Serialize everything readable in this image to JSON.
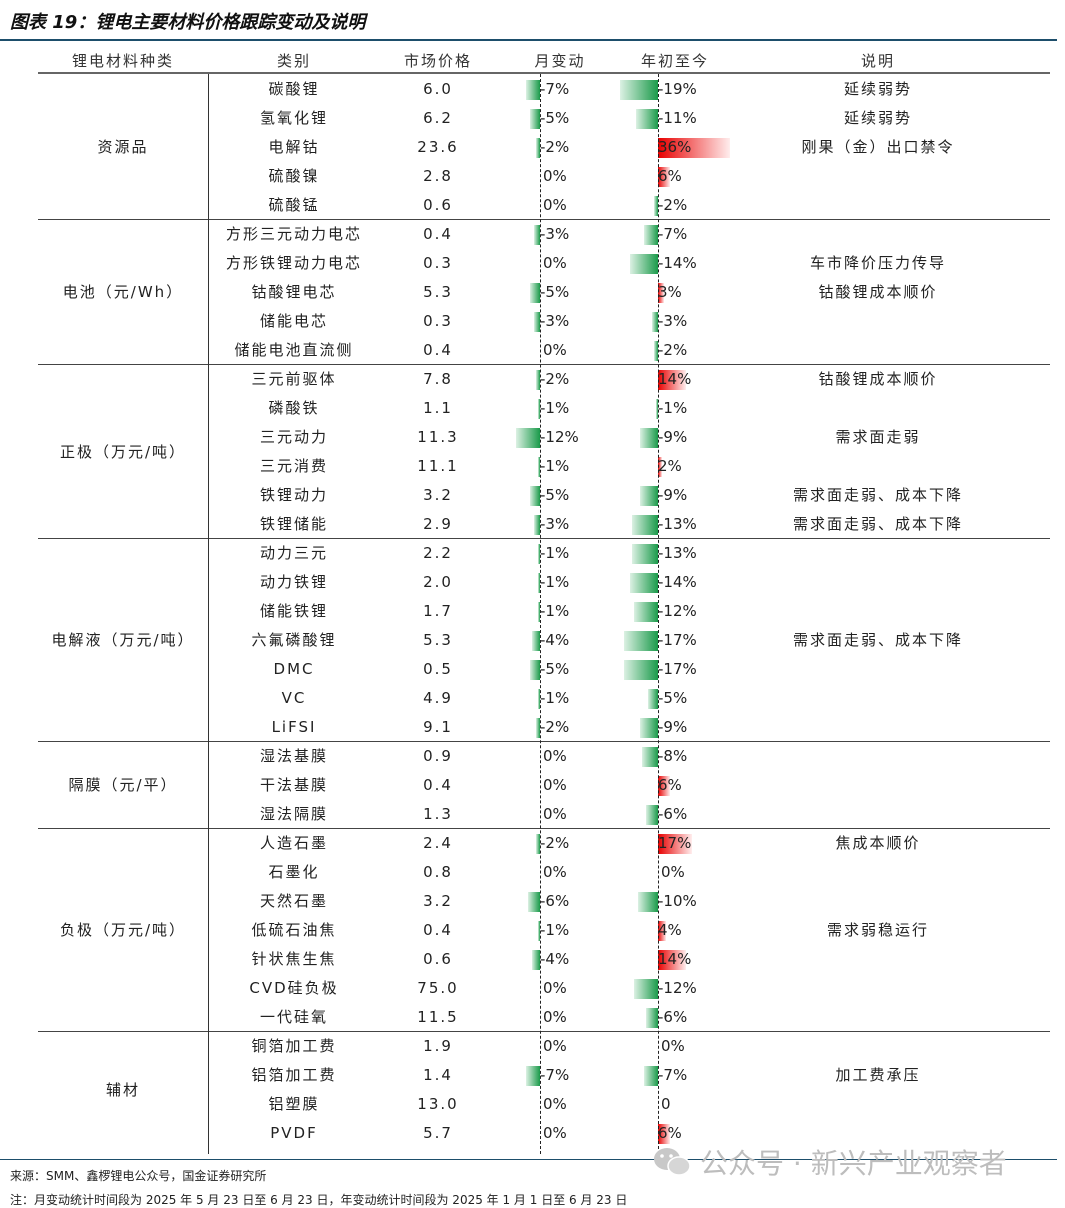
{
  "title": "图表 19：锂电主要材料价格跟踪变动及说明",
  "headers": [
    "锂电材料种类",
    "类别",
    "市场价格",
    "月变动",
    "年初至今",
    "说明"
  ],
  "colors": {
    "negative": "#1a9a4a",
    "positive": "#e80000",
    "rule": "#1d4e6b"
  },
  "groups": [
    {
      "name": "资源品",
      "rows": [
        {
          "name": "碳酸锂",
          "price": "6.0",
          "month": "-7%",
          "year": "-19%",
          "note": "延续弱势"
        },
        {
          "name": "氢氧化锂",
          "price": "6.2",
          "month": "-5%",
          "year": "-11%",
          "note": "延续弱势"
        },
        {
          "name": "电解钴",
          "price": "23.6",
          "month": "-2%",
          "year": "36%",
          "note": "刚果（金）出口禁令"
        },
        {
          "name": "硫酸镍",
          "price": "2.8",
          "month": "0%",
          "year": "6%",
          "note": ""
        },
        {
          "name": "硫酸锰",
          "price": "0.6",
          "month": "0%",
          "year": "-2%",
          "note": ""
        }
      ]
    },
    {
      "name": "电池（元/Wh）",
      "rows": [
        {
          "name": "方形三元动力电芯",
          "price": "0.4",
          "month": "-3%",
          "year": "-7%",
          "note": ""
        },
        {
          "name": "方形铁锂动力电芯",
          "price": "0.3",
          "month": "0%",
          "year": "-14%",
          "note": "车市降价压力传导"
        },
        {
          "name": "钴酸锂电芯",
          "price": "5.3",
          "month": "-5%",
          "year": "3%",
          "note": "钴酸锂成本顺价"
        },
        {
          "name": "储能电芯",
          "price": "0.3",
          "month": "-3%",
          "year": "-3%",
          "note": ""
        },
        {
          "name": "储能电池直流侧",
          "price": "0.4",
          "month": "0%",
          "year": "-2%",
          "note": ""
        }
      ]
    },
    {
      "name": "正极（万元/吨）",
      "rows": [
        {
          "name": "三元前驱体",
          "price": "7.8",
          "month": "-2%",
          "year": "14%",
          "note": "钴酸锂成本顺价"
        },
        {
          "name": "磷酸铁",
          "price": "1.1",
          "month": "-1%",
          "year": "-1%",
          "note": ""
        },
        {
          "name": "三元动力",
          "price": "11.3",
          "month": "-12%",
          "year": "-9%",
          "note": "需求面走弱"
        },
        {
          "name": "三元消费",
          "price": "11.1",
          "month": "-1%",
          "year": "2%",
          "note": ""
        },
        {
          "name": "铁锂动力",
          "price": "3.2",
          "month": "-5%",
          "year": "-9%",
          "note": "需求面走弱、成本下降"
        },
        {
          "name": "铁锂储能",
          "price": "2.9",
          "month": "-3%",
          "year": "-13%",
          "note": "需求面走弱、成本下降"
        }
      ]
    },
    {
      "name": "电解液（万元/吨）",
      "rows": [
        {
          "name": "动力三元",
          "price": "2.2",
          "month": "-1%",
          "year": "-13%",
          "note": ""
        },
        {
          "name": "动力铁锂",
          "price": "2.0",
          "month": "-1%",
          "year": "-14%",
          "note": ""
        },
        {
          "name": "储能铁锂",
          "price": "1.7",
          "month": "-1%",
          "year": "-12%",
          "note": ""
        },
        {
          "name": "六氟磷酸锂",
          "price": "5.3",
          "month": "-4%",
          "year": "-17%",
          "note": "需求面走弱、成本下降"
        },
        {
          "name": "DMC",
          "price": "0.5",
          "month": "-5%",
          "year": "-17%",
          "note": ""
        },
        {
          "name": "VC",
          "price": "4.9",
          "month": "-1%",
          "year": "-5%",
          "note": ""
        },
        {
          "name": "LiFSI",
          "price": "9.1",
          "month": "-2%",
          "year": "-9%",
          "note": ""
        }
      ]
    },
    {
      "name": "隔膜（元/平）",
      "rows": [
        {
          "name": "湿法基膜",
          "price": "0.9",
          "month": "0%",
          "year": "-8%",
          "note": ""
        },
        {
          "name": "干法基膜",
          "price": "0.4",
          "month": "0%",
          "year": "6%",
          "note": ""
        },
        {
          "name": "湿法隔膜",
          "price": "1.3",
          "month": "0%",
          "year": "-6%",
          "note": ""
        }
      ]
    },
    {
      "name": "负极（万元/吨）",
      "rows": [
        {
          "name": "人造石墨",
          "price": "2.4",
          "month": "-2%",
          "year": "17%",
          "note": "焦成本顺价"
        },
        {
          "name": "石墨化",
          "price": "0.8",
          "month": "0%",
          "year": "0%",
          "note": ""
        },
        {
          "name": "天然石墨",
          "price": "3.2",
          "month": "-6%",
          "year": "-10%",
          "note": ""
        },
        {
          "name": "低硫石油焦",
          "price": "0.4",
          "month": "-1%",
          "year": "4%",
          "note": "需求弱稳运行"
        },
        {
          "name": "针状焦生焦",
          "price": "0.6",
          "month": "-4%",
          "year": "14%",
          "note": ""
        },
        {
          "name": "CVD硅负极",
          "price": "75.0",
          "month": "0%",
          "year": "-12%",
          "note": ""
        },
        {
          "name": "一代硅氧",
          "price": "11.5",
          "month": "0%",
          "year": "-6%",
          "note": ""
        }
      ]
    },
    {
      "name": "辅材",
      "rows": [
        {
          "name": "铜箔加工费",
          "price": "1.9",
          "month": "0%",
          "year": "0%",
          "note": ""
        },
        {
          "name": "铝箔加工费",
          "price": "1.4",
          "month": "-7%",
          "year": "-7%",
          "note": "加工费承压"
        },
        {
          "name": "铝塑膜",
          "price": "13.0",
          "month": "0%",
          "year": "0",
          "note": ""
        },
        {
          "name": "PVDF",
          "price": "5.7",
          "month": "0%",
          "year": "6%",
          "note": ""
        }
      ]
    }
  ],
  "source": "来源：SMM、鑫椤锂电公众号，国金证券研究所",
  "footnote": "注：月变动统计时间段为 2025 年 5 月 23 日至 6 月 23 日，年变动统计时间段为 2025 年 1 月 1 日至 6 月 23 日",
  "watermark": "公众号 · 新兴产业观察者"
}
